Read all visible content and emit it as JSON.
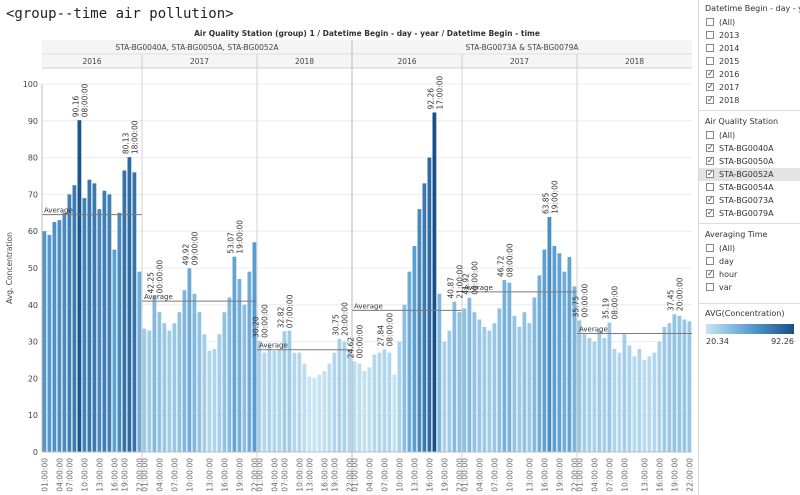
{
  "window": {
    "title": "<group--time air pollution>"
  },
  "sidebar": {
    "year_filter": {
      "title": "Datetime Begin - day - y...",
      "options": [
        {
          "label": "(All)",
          "checked": false
        },
        {
          "label": "2013",
          "checked": false
        },
        {
          "label": "2014",
          "checked": false
        },
        {
          "label": "2015",
          "checked": false
        },
        {
          "label": "2016",
          "checked": true
        },
        {
          "label": "2017",
          "checked": true
        },
        {
          "label": "2018",
          "checked": true
        }
      ]
    },
    "station_filter": {
      "title": "Air Quality Station",
      "options": [
        {
          "label": "(All)",
          "checked": false
        },
        {
          "label": "STA-BG0040A",
          "checked": true
        },
        {
          "label": "STA-BG0050A",
          "checked": true
        },
        {
          "label": "STA-BG0052A",
          "checked": true
        },
        {
          "label": "STA-BG0054A",
          "checked": false
        },
        {
          "label": "STA-BG0073A",
          "checked": true
        },
        {
          "label": "STA-BG0079A",
          "checked": true
        }
      ]
    },
    "averaging_filter": {
      "title": "Averaging Time",
      "options": [
        {
          "label": "(All)",
          "checked": false
        },
        {
          "label": "day",
          "checked": false
        },
        {
          "label": "hour",
          "checked": true
        },
        {
          "label": "var",
          "checked": false
        }
      ]
    },
    "color_legend": {
      "title": "AVG(Concentration)",
      "min_label": "20.34",
      "max_label": "92.26",
      "colors": [
        "#c6e4f3",
        "#5a9ed0",
        "#16508a"
      ]
    }
  },
  "chart_data": {
    "type": "bar",
    "title": "Air Quality Station (group) 1  /  Datetime Begin - day - year  /  Datetime Begin - time",
    "ylabel": "Avg. Concentration",
    "ylim": [
      0,
      100
    ],
    "yticks": [
      0,
      10,
      20,
      30,
      40,
      50,
      60,
      70,
      80,
      90,
      100
    ],
    "xtick_labels": [
      "01:00:00",
      "04:00:00",
      "07:00:00",
      "10:00:00",
      "13:00:00",
      "16:00:00",
      "19:00:00",
      "22:00:00"
    ],
    "color_min": 20.34,
    "color_max": 92.26,
    "reference_line_label": "Average",
    "groups": [
      {
        "name": "STA-BG0040A, STA-BG0050A, STA-BG0052A",
        "panels": [
          {
            "year": "2016",
            "average": 64.5,
            "values": [
              60,
              59,
              62.5,
              63,
              65,
              70,
              72.5,
              90.16,
              69,
              74,
              73,
              66,
              71,
              70,
              55,
              65,
              76.5,
              80.13,
              76,
              49
            ]
          },
          {
            "year": "2017",
            "average": 41,
            "values": [
              33.5,
              33,
              42.25,
              38,
              35,
              33,
              35,
              38,
              44,
              49.92,
              43,
              38,
              32,
              27.5,
              28,
              32,
              38,
              42,
              53.07,
              47,
              40,
              49,
              57
            ]
          },
          {
            "year": "2018",
            "average": 27.8,
            "values": [
              30.2,
              27,
              29,
              27.5,
              28,
              32.82,
              33,
              27,
              27,
              24,
              20.5,
              20,
              21,
              22,
              24,
              27,
              30.75,
              30,
              27.5
            ]
          }
        ]
      },
      {
        "name": "STA-BG0073A & STA-BG0079A",
        "panels": [
          {
            "year": "2016",
            "average": 38.5,
            "values": [
              24.62,
              24,
              22,
              23,
              26.5,
              27,
              27.84,
              27,
              21,
              30,
              40,
              49,
              56,
              66,
              73,
              80,
              92.26,
              43,
              30,
              33,
              40.87,
              38
            ]
          },
          {
            "year": "2017",
            "average": 43.5,
            "values": [
              39,
              41.92,
              38,
              36,
              34,
              33,
              35,
              39,
              46.72,
              46,
              37,
              34,
              38,
              35,
              42,
              48,
              55,
              63.85,
              56,
              54,
              49,
              53,
              45
            ]
          },
          {
            "year": "2018",
            "average": 32.2,
            "values": [
              35.75,
              32,
              31,
              30,
              33,
              31,
              35.19,
              28,
              27,
              32,
              29,
              26,
              28,
              25,
              26,
              27,
              30,
              34,
              35,
              37.45,
              37,
              36,
              35.5
            ]
          }
        ]
      }
    ],
    "bar_labels": [
      {
        "group": 0,
        "panel": 0,
        "index": 7,
        "value": "90.16",
        "time": "08:00:00"
      },
      {
        "group": 0,
        "panel": 0,
        "index": 17,
        "value": "80.13",
        "time": "18:00:00"
      },
      {
        "group": 0,
        "panel": 1,
        "index": 2,
        "value": "42.25",
        "time": "00:00:00"
      },
      {
        "group": 0,
        "panel": 1,
        "index": 9,
        "value": "49.92",
        "time": "09:00:00"
      },
      {
        "group": 0,
        "panel": 1,
        "index": 18,
        "value": "53.07",
        "time": "19:00:00"
      },
      {
        "group": 0,
        "panel": 2,
        "index": 0,
        "value": "30.20",
        "time": "00:00:00"
      },
      {
        "group": 0,
        "panel": 2,
        "index": 5,
        "value": "32.82",
        "time": "07:00:00"
      },
      {
        "group": 0,
        "panel": 2,
        "index": 16,
        "value": "30.75",
        "time": "20:00:00"
      },
      {
        "group": 1,
        "panel": 0,
        "index": 0,
        "value": "24.62",
        "time": "00:00:00"
      },
      {
        "group": 1,
        "panel": 0,
        "index": 6,
        "value": "27.84",
        "time": "08:00:00"
      },
      {
        "group": 1,
        "panel": 0,
        "index": 16,
        "value": "92.26",
        "time": "17:00:00"
      },
      {
        "group": 1,
        "panel": 0,
        "index": 20,
        "value": "40.87",
        "time": "21:00:00"
      },
      {
        "group": 1,
        "panel": 1,
        "index": 1,
        "value": "41.92",
        "time": "00:00:00"
      },
      {
        "group": 1,
        "panel": 1,
        "index": 8,
        "value": "46.72",
        "time": "08:00:00"
      },
      {
        "group": 1,
        "panel": 1,
        "index": 17,
        "value": "63.85",
        "time": "19:00:00"
      },
      {
        "group": 1,
        "panel": 2,
        "index": 0,
        "value": "35.75",
        "time": "00:00:00"
      },
      {
        "group": 1,
        "panel": 2,
        "index": 6,
        "value": "35.19",
        "time": "08:00:00"
      },
      {
        "group": 1,
        "panel": 2,
        "index": 19,
        "value": "37.45",
        "time": "20:00:00"
      }
    ]
  }
}
